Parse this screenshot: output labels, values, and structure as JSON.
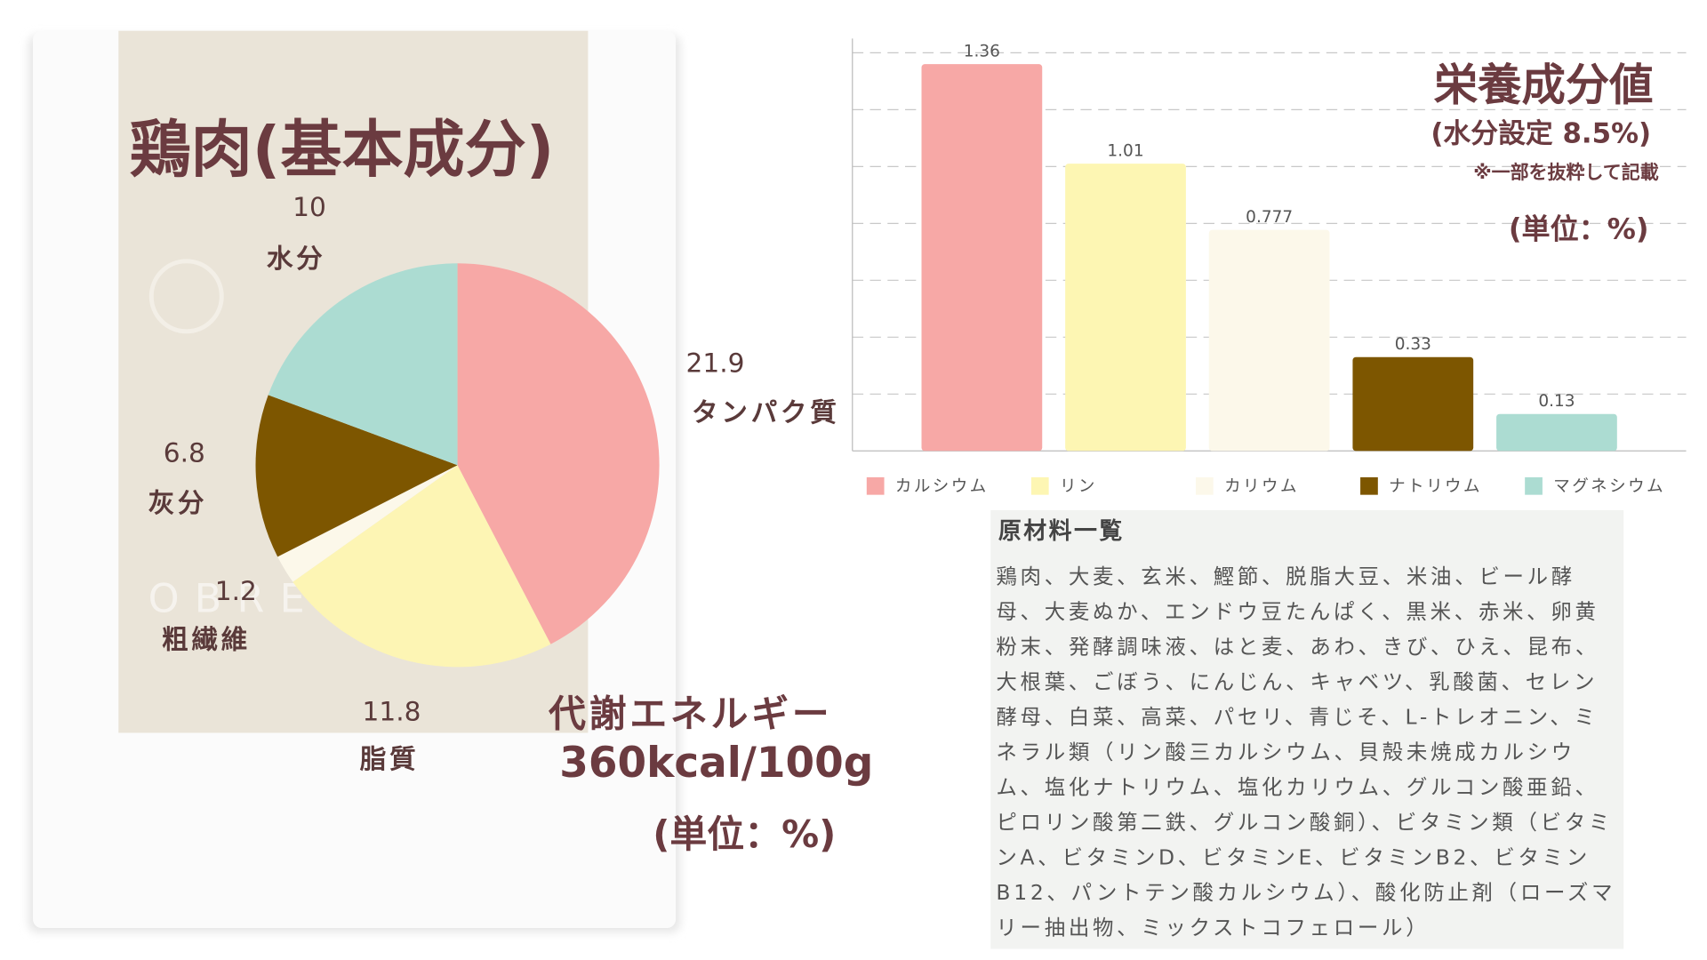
{
  "chart_data": [
    {
      "type": "pie",
      "title": "鶏肉(基本成分)",
      "note": "(単位：%)",
      "categories": [
        "タンパク質",
        "脂質",
        "粗繊維",
        "灰分",
        "水分"
      ],
      "values": [
        21.9,
        11.8,
        1.2,
        6.8,
        10
      ],
      "colors": [
        "#f7a8a6",
        "#fdf5b4",
        "#fcf8ea",
        "#7d5600",
        "#acdcd2"
      ]
    },
    {
      "type": "bar",
      "title": "栄養成分値",
      "subtitle": "(水分設定 8.5%)",
      "note": "※一部を抜粋して記載",
      "unit": "(単位：%)",
      "categories": [
        "カルシウム",
        "リン",
        "カリウム",
        "ナトリウム",
        "マグネシウム"
      ],
      "values": [
        1.36,
        1.01,
        0.777,
        0.33,
        0.13
      ],
      "colors": [
        "#f7a8a6",
        "#fdf6b3",
        "#fcf8ea",
        "#7d5600",
        "#acdcd2"
      ],
      "ylim": [
        0,
        1.45
      ],
      "yticks": [
        0.2,
        0.4,
        0.6,
        0.8,
        1.0,
        1.2,
        1.4
      ],
      "grid": true,
      "legend": "bottom"
    }
  ],
  "brand": "OBRE",
  "energy": {
    "label": "代謝エネルギー",
    "value": "360kcal/100g"
  },
  "ingredients": {
    "heading": "原材料一覧",
    "text": "鶏肉、大麦、玄米、鰹節、脱脂大豆、米油、ビール酵母、大麦ぬか、エンドウ豆たんぱく、黒米、赤米、卵黄粉末、発酵調味液、はと麦、あわ、きび、ひえ、昆布、大根葉、ごぼう、にんじん、キャベツ、乳酸菌、セレン酵母、白菜、高菜、パセリ、青じそ、L-トレオニン、ミネラル類（リン酸三カルシウム、貝殻未焼成カルシウム、塩化ナトリウム、塩化カリウム、グルコン酸亜鉛、ピロリン酸第二鉄、グルコン酸銅）、ビタミン類（ビタミンA、ビタミンD、ビタミンE、ビタミンB2、ビタミンB12、パントテン酸カルシウム）、酸化防止剤（ローズマリー抽出物、ミックストコフェロール）"
  }
}
